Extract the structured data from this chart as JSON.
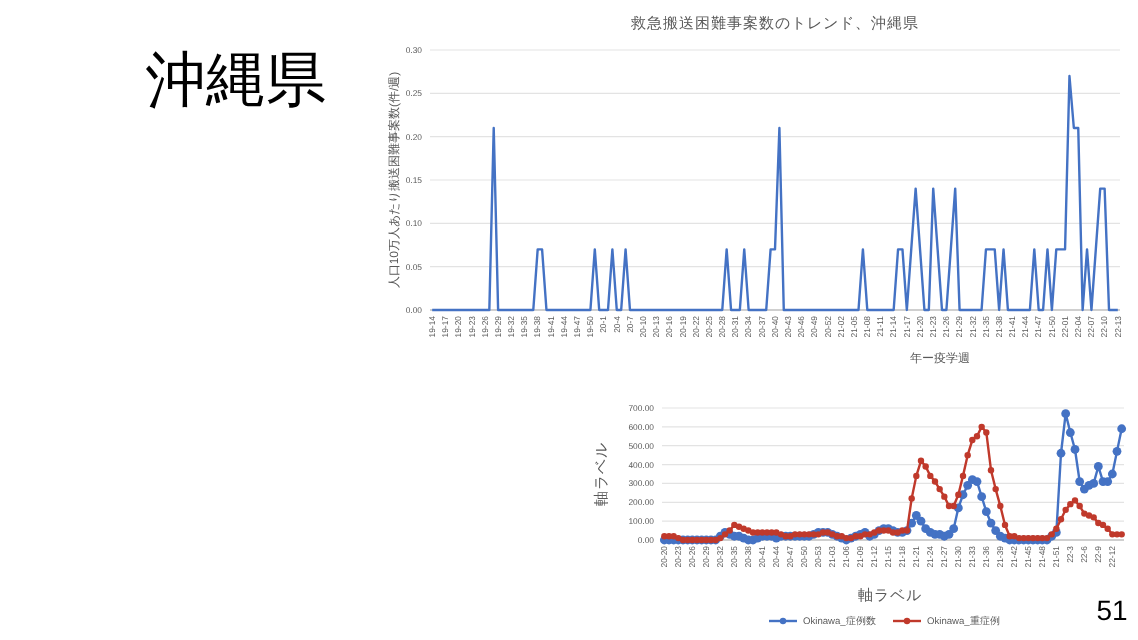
{
  "chart_data": [
    {
      "type": "line",
      "title": "救急搬送困難事案数のトレンド、沖縄県",
      "xlabel": "年ー疫学週",
      "ylabel": "人口10万人あたり搬送困難事案数(件/週)",
      "annotations": [
        "沖縄県"
      ],
      "categories": [
        "19-14",
        null,
        null,
        "19-17",
        null,
        null,
        "19-20",
        null,
        null,
        "19-23",
        null,
        null,
        "19-26",
        null,
        null,
        "19-29",
        null,
        null,
        "19-32",
        null,
        null,
        "19-35",
        null,
        null,
        "19-38",
        null,
        null,
        "19-41",
        null,
        null,
        "19-44",
        null,
        null,
        "19-47",
        null,
        null,
        "19-50",
        null,
        null,
        "20-1",
        null,
        null,
        "20-4",
        null,
        null,
        "20-7",
        null,
        null,
        "20-10",
        null,
        null,
        "20-13",
        null,
        null,
        "20-16",
        null,
        null,
        "20-19",
        null,
        null,
        "20-22",
        null,
        null,
        "20-25",
        null,
        null,
        "20-28",
        null,
        null,
        "20-31",
        null,
        null,
        "20-34",
        null,
        null,
        "20-37",
        null,
        null,
        "20-40",
        null,
        null,
        "20-43",
        null,
        null,
        "20-46",
        null,
        null,
        "20-49",
        null,
        null,
        "20-52",
        null,
        null,
        "21-02",
        null,
        null,
        "21-05",
        null,
        null,
        "21-08",
        null,
        null,
        "21-11",
        null,
        null,
        "21-14",
        null,
        null,
        "21-17",
        null,
        null,
        "21-20",
        null,
        null,
        "21-23",
        null,
        null,
        "21-26",
        null,
        null,
        "21-29",
        null,
        null,
        "21-32",
        null,
        null,
        "21-35",
        null,
        null,
        "21-38",
        null,
        null,
        "21-41",
        null,
        null,
        "21-44",
        null,
        null,
        "21-47",
        null,
        null,
        "21-50",
        null,
        null,
        "22-01",
        null,
        null,
        "22-04",
        null,
        null,
        "22-07",
        null,
        null,
        "22-10",
        null,
        null,
        "22-13"
      ],
      "series": [
        {
          "color": "#4472c4",
          "values": [
            0,
            0,
            0,
            0,
            0,
            0,
            0,
            0,
            0,
            0,
            0,
            0,
            0,
            0,
            0.21,
            0,
            0,
            0,
            0,
            0,
            0,
            0,
            0,
            0,
            0.07,
            0.07,
            0,
            0,
            0,
            0,
            0,
            0,
            0,
            0,
            0,
            0,
            0,
            0.07,
            0,
            0,
            0,
            0.07,
            0,
            0,
            0.07,
            0,
            0,
            0,
            0,
            0,
            0,
            0,
            0,
            0,
            0,
            0,
            0,
            0,
            0,
            0,
            0,
            0,
            0,
            0,
            0,
            0,
            0,
            0.07,
            0,
            0,
            0,
            0.07,
            0,
            0,
            0,
            0,
            0,
            0.07,
            0.07,
            0.21,
            0,
            0,
            0,
            0,
            0,
            0,
            0,
            0,
            0,
            0,
            0,
            0,
            0,
            0,
            0,
            0,
            0,
            0,
            0.07,
            0,
            0,
            0,
            0,
            0,
            0,
            0,
            0.07,
            0.07,
            0,
            0.07,
            0.14,
            0.07,
            0,
            0,
            0.14,
            0.07,
            0,
            0,
            0.07,
            0.14,
            0,
            0,
            0,
            0,
            0,
            0,
            0.07,
            0.07,
            0.07,
            0,
            0.07,
            0,
            0,
            0,
            0,
            0,
            0,
            0.07,
            0,
            0,
            0.07,
            0,
            0.07,
            0.07,
            0.07,
            0.27,
            0.21,
            0.21,
            0,
            0.07,
            0,
            0.07,
            0.14,
            0.14,
            0,
            0,
            0
          ]
        }
      ],
      "ylim": [
        0,
        0.3
      ],
      "yticks": [
        {
          "value": 0,
          "label": "0.00"
        },
        {
          "value": 0.05,
          "label": "0.05"
        },
        {
          "value": 0.1,
          "label": "0.10"
        },
        {
          "value": 0.15,
          "label": "0.15"
        },
        {
          "value": 0.2,
          "label": "0.20"
        },
        {
          "value": 0.25,
          "label": "0.25"
        },
        {
          "value": 0.3,
          "label": "0.30"
        }
      ],
      "grid": "y",
      "line_style": "solid"
    },
    {
      "type": "line",
      "xlabel": "軸ラベル",
      "ylabel": "軸ラベル",
      "annotations": [
        "51"
      ],
      "categories": [
        "20-20",
        null,
        null,
        "20-23",
        null,
        null,
        "20-26",
        null,
        null,
        "20-29",
        null,
        null,
        "20-32",
        null,
        null,
        "20-35",
        null,
        null,
        "20-38",
        null,
        null,
        "20-41",
        null,
        null,
        "20-44",
        null,
        null,
        "20-47",
        null,
        null,
        "20-50",
        null,
        null,
        "20-53",
        null,
        null,
        "21-03",
        null,
        null,
        "21-06",
        null,
        null,
        "21-09",
        null,
        null,
        "21-12",
        null,
        null,
        "21-15",
        null,
        null,
        "21-18",
        null,
        null,
        "21-21",
        null,
        null,
        "21-24",
        null,
        null,
        "21-27",
        null,
        null,
        "21-30",
        null,
        null,
        "21-33",
        null,
        null,
        "21-36",
        null,
        null,
        "21-39",
        null,
        null,
        "21-42",
        null,
        null,
        "21-45",
        null,
        null,
        "21-48",
        null,
        null,
        "21-51",
        null,
        null,
        "22-3",
        null,
        null,
        "22-6",
        null,
        null,
        "22-9",
        null,
        null,
        "22-12",
        null,
        null
      ],
      "series": [
        {
          "name": "Okinawa_症例数",
          "color": "#4472c4",
          "values": [
            0,
            0,
            0,
            0,
            0,
            0,
            0,
            0,
            0,
            0,
            0,
            0,
            20,
            40,
            30,
            20,
            20,
            10,
            0,
            0,
            10,
            20,
            20,
            20,
            10,
            20,
            20,
            20,
            20,
            20,
            20,
            20,
            30,
            40,
            40,
            40,
            30,
            20,
            10,
            0,
            10,
            20,
            30,
            40,
            20,
            30,
            50,
            60,
            60,
            50,
            40,
            40,
            50,
            90,
            130,
            100,
            60,
            40,
            30,
            30,
            20,
            30,
            60,
            170,
            240,
            290,
            320,
            310,
            230,
            150,
            90,
            50,
            20,
            10,
            0,
            0,
            0,
            0,
            0,
            0,
            0,
            0,
            0,
            20,
            40,
            460,
            670,
            570,
            480,
            310,
            270,
            290,
            300,
            390,
            310,
            310,
            350,
            470,
            590
          ]
        },
        {
          "name": "Okinawa_重症例",
          "color": "#c0392b",
          "values": [
            20,
            20,
            20,
            10,
            0,
            0,
            0,
            0,
            0,
            0,
            0,
            0,
            10,
            30,
            50,
            80,
            70,
            60,
            50,
            40,
            40,
            40,
            40,
            40,
            40,
            30,
            20,
            20,
            30,
            30,
            30,
            30,
            30,
            30,
            40,
            40,
            30,
            20,
            20,
            10,
            10,
            20,
            20,
            30,
            30,
            40,
            50,
            50,
            50,
            40,
            40,
            50,
            50,
            220,
            340,
            420,
            390,
            340,
            310,
            270,
            230,
            180,
            180,
            240,
            340,
            450,
            530,
            550,
            600,
            570,
            370,
            270,
            180,
            80,
            20,
            20,
            10,
            10,
            10,
            10,
            10,
            10,
            10,
            30,
            60,
            110,
            160,
            190,
            210,
            180,
            140,
            130,
            120,
            90,
            80,
            60,
            30,
            30,
            30
          ]
        }
      ],
      "ylim": [
        0,
        700
      ],
      "yticks": [
        {
          "value": 0,
          "label": "0.00"
        },
        {
          "value": 100,
          "label": "100.00"
        },
        {
          "value": 200,
          "label": "200.00"
        },
        {
          "value": 300,
          "label": "300.00"
        },
        {
          "value": 400,
          "label": "400.00"
        },
        {
          "value": 500,
          "label": "500.00"
        },
        {
          "value": 600,
          "label": "600.00"
        },
        {
          "value": 700,
          "label": "700.00"
        }
      ],
      "grid": "y",
      "legend": "bottom",
      "marker": "circle",
      "line_style": "solid"
    }
  ]
}
